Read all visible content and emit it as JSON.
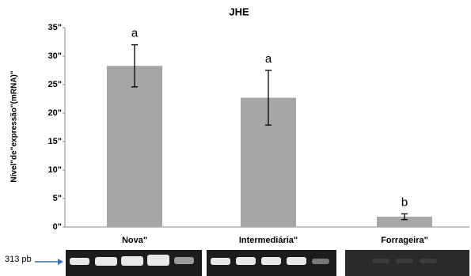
{
  "chart_data": {
    "type": "bar",
    "title": "JHE",
    "y_label": "Nível\"de\"expressão\"(mRNA)\"",
    "categories": [
      "Nova\"",
      "Intermediária\"",
      "Forrageira\""
    ],
    "values": [
      28.3,
      22.7,
      1.8
    ],
    "errors": [
      3.7,
      4.8,
      0.5
    ],
    "significance_labels": [
      "a",
      "a",
      "b"
    ],
    "color": "#a6a6a6",
    "ylim": [
      0,
      35
    ],
    "yticks": [
      {
        "value": 0,
        "label": "0\""
      },
      {
        "value": 5,
        "label": "5\""
      },
      {
        "value": 10,
        "label": "10\""
      },
      {
        "value": 15,
        "label": "15\""
      },
      {
        "value": 20,
        "label": "20\""
      },
      {
        "value": 25,
        "label": "25\""
      },
      {
        "value": 30,
        "label": "30\""
      },
      {
        "value": 35,
        "label": "35\""
      }
    ],
    "gel_marker": "313 pb"
  }
}
